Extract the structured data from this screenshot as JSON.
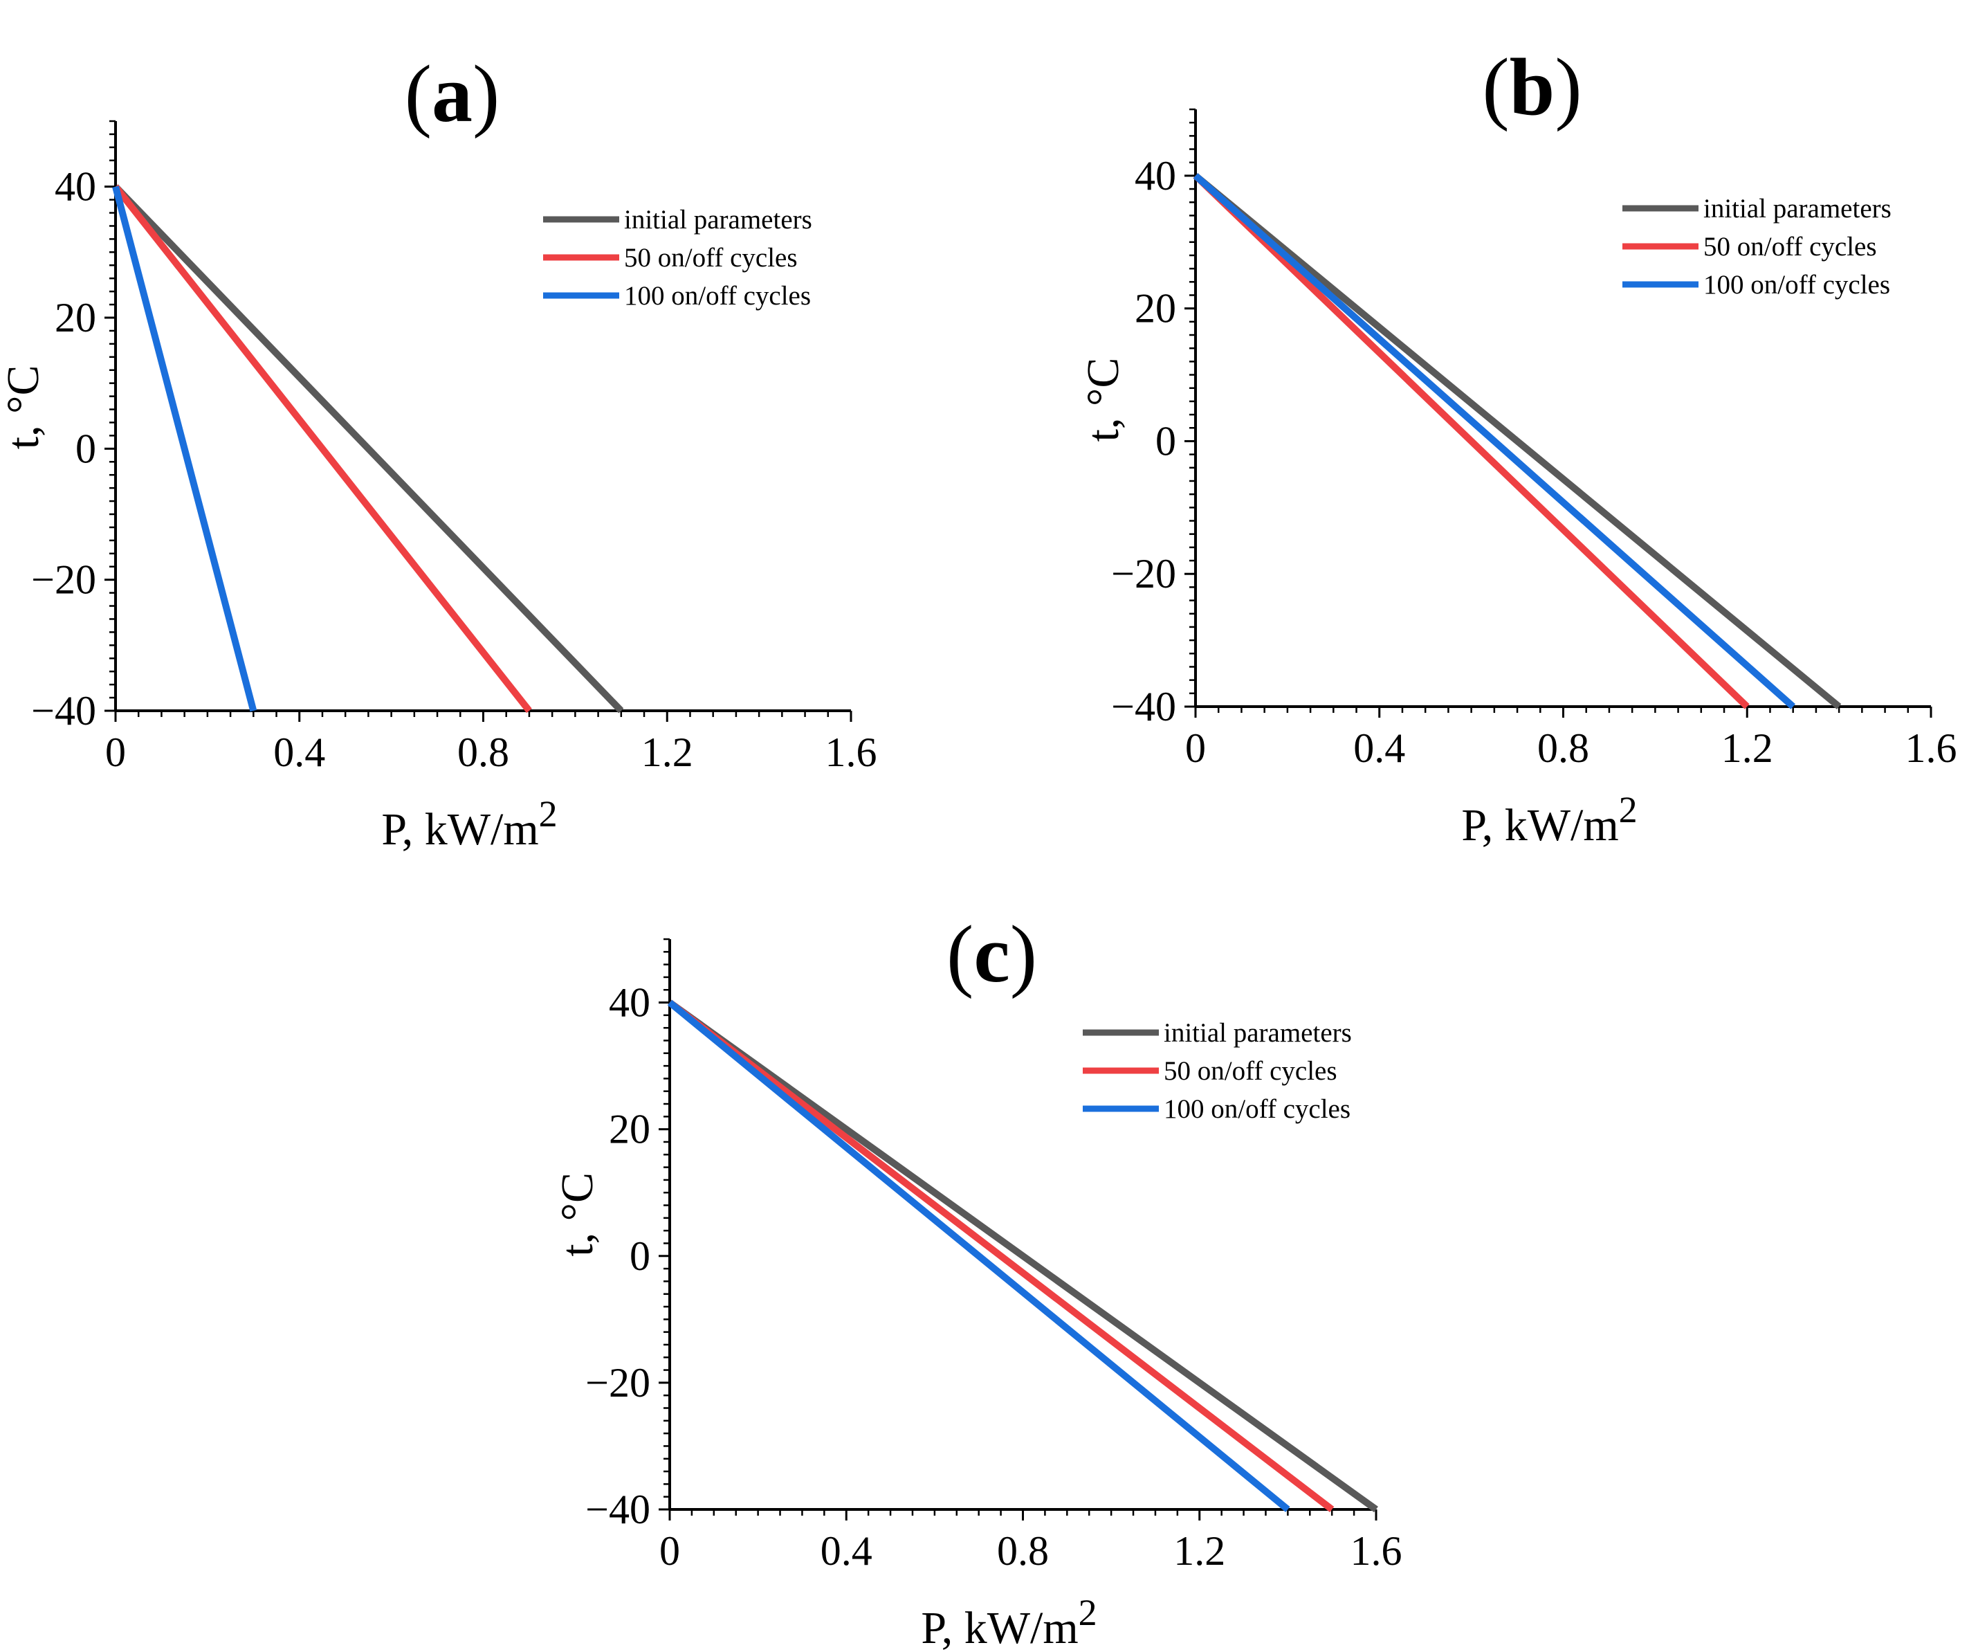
{
  "chart_data": [
    {
      "id": "a",
      "type": "line",
      "panel_label": {
        "open": "(",
        "letter": "a",
        "close": ")"
      },
      "xlabel": "P, kW/m",
      "xlabel_sup": "2",
      "ylabel": "t, °C",
      "xlim": [
        0,
        1.6
      ],
      "ylim": [
        -40,
        50
      ],
      "x_ticks": [
        0,
        0.4,
        0.8,
        1.2,
        1.6
      ],
      "x_tick_labels": [
        "0",
        "0.4",
        "0.8",
        "1.2",
        "1.6"
      ],
      "y_ticks": [
        -40,
        -20,
        0,
        20,
        40
      ],
      "y_tick_labels": [
        "−40",
        "−20",
        "0",
        "20",
        "40"
      ],
      "legend_position": "top-right",
      "series": [
        {
          "name": "initial parameters",
          "color": "#595959",
          "x": [
            0,
            1.1
          ],
          "y": [
            40,
            -40
          ]
        },
        {
          "name": "50 on/off cycles",
          "color": "#ee4043",
          "x": [
            0,
            0.9
          ],
          "y": [
            40,
            -40
          ]
        },
        {
          "name": "100 on/off cycles",
          "color": "#1a6fdc",
          "x": [
            0,
            0.3
          ],
          "y": [
            40,
            -40
          ]
        }
      ]
    },
    {
      "id": "b",
      "type": "line",
      "panel_label": {
        "open": "(",
        "letter": "b",
        "close": ")"
      },
      "xlabel": "P, kW/m",
      "xlabel_sup": "2",
      "ylabel": "t, °C",
      "xlim": [
        0,
        1.6
      ],
      "ylim": [
        -40,
        50
      ],
      "x_ticks": [
        0,
        0.4,
        0.8,
        1.2,
        1.6
      ],
      "x_tick_labels": [
        "0",
        "0.4",
        "0.8",
        "1.2",
        "1.6"
      ],
      "y_ticks": [
        -40,
        -20,
        0,
        20,
        40
      ],
      "y_tick_labels": [
        "−40",
        "−20",
        "0",
        "20",
        "40"
      ],
      "legend_position": "top-right",
      "series": [
        {
          "name": "initial parameters",
          "color": "#595959",
          "x": [
            0,
            1.4
          ],
          "y": [
            40,
            -40
          ]
        },
        {
          "name": "50 on/off cycles",
          "color": "#ee4043",
          "x": [
            0,
            1.2
          ],
          "y": [
            40,
            -40
          ]
        },
        {
          "name": "100 on/off cycles",
          "color": "#1a6fdc",
          "x": [
            0,
            1.3
          ],
          "y": [
            40,
            -40
          ]
        }
      ]
    },
    {
      "id": "c",
      "type": "line",
      "panel_label": {
        "open": "(",
        "letter": "c",
        "close": ")"
      },
      "xlabel": "P, kW/m",
      "xlabel_sup": "2",
      "ylabel": "t, °C",
      "xlim": [
        0,
        1.6
      ],
      "ylim": [
        -40,
        50
      ],
      "x_ticks": [
        0,
        0.4,
        0.8,
        1.2,
        1.6
      ],
      "x_tick_labels": [
        "0",
        "0.4",
        "0.8",
        "1.2",
        "1.6"
      ],
      "y_ticks": [
        -40,
        -20,
        0,
        20,
        40
      ],
      "y_tick_labels": [
        "−40",
        "−20",
        "0",
        "20",
        "40"
      ],
      "legend_position": "top-right",
      "series": [
        {
          "name": "initial parameters",
          "color": "#595959",
          "x": [
            0,
            1.6
          ],
          "y": [
            40,
            -40
          ]
        },
        {
          "name": "50 on/off cycles",
          "color": "#ee4043",
          "x": [
            0,
            1.5
          ],
          "y": [
            40,
            -40
          ]
        },
        {
          "name": "100 on/off cycles",
          "color": "#1a6fdc",
          "x": [
            0,
            1.4
          ],
          "y": [
            40,
            -40
          ]
        }
      ]
    }
  ]
}
